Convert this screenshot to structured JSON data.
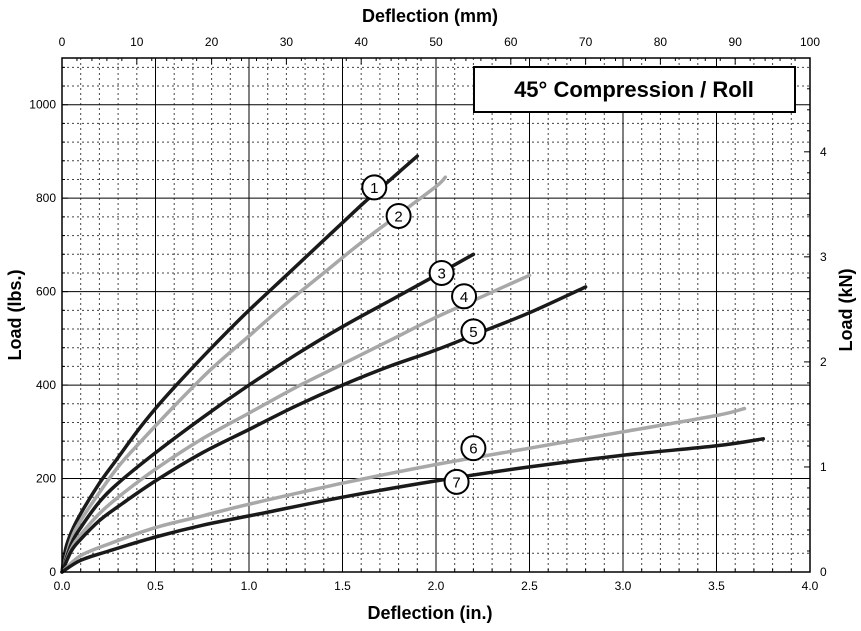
{
  "chart_data": {
    "type": "line",
    "title": "45° Compression / Roll",
    "xlabel": "Deflection (in.)",
    "x2label": "Deflection (mm)",
    "ylabel": "Load (lbs.)",
    "y2label": "Load (kN)",
    "xlim": [
      0,
      4.0
    ],
    "ylim": [
      0,
      1100
    ],
    "x2lim": [
      0,
      100
    ],
    "y2lim": [
      0,
      4.893
    ],
    "x_ticks": [
      "0.0",
      "0.5",
      "1.0",
      "1.5",
      "2.0",
      "2.5",
      "3.0",
      "3.5",
      "4.0"
    ],
    "y_ticks": [
      "0",
      "200",
      "400",
      "600",
      "800",
      "1000"
    ],
    "x2_ticks": [
      "0",
      "10",
      "20",
      "30",
      "40",
      "50",
      "60",
      "70",
      "80",
      "90",
      "100"
    ],
    "y2_ticks": [
      "0",
      "1",
      "2",
      "3",
      "4"
    ],
    "grid": true,
    "colors": {
      "dark": "#1a1a1a",
      "light": "#a8a8a8",
      "grid_major": "#000000",
      "grid_minor": "#444444"
    },
    "series": [
      {
        "name": "1",
        "color": "dark",
        "x": [
          0,
          0.02,
          0.05,
          0.1,
          0.2,
          0.3,
          0.4,
          0.5,
          0.6,
          0.8,
          1.0,
          1.2,
          1.4,
          1.6,
          1.7,
          1.8,
          1.9
        ],
        "y": [
          0,
          50,
          85,
          125,
          190,
          245,
          300,
          350,
          395,
          480,
          560,
          635,
          710,
          785,
          820,
          855,
          890
        ]
      },
      {
        "name": "2",
        "color": "light",
        "x": [
          0,
          0.05,
          0.1,
          0.2,
          0.3,
          0.4,
          0.6,
          0.8,
          1.0,
          1.2,
          1.4,
          1.6,
          1.8,
          2.0,
          2.05
        ],
        "y": [
          0,
          70,
          110,
          170,
          225,
          270,
          355,
          435,
          505,
          575,
          640,
          705,
          765,
          825,
          845
        ]
      },
      {
        "name": "3",
        "color": "dark",
        "x": [
          0,
          0.05,
          0.1,
          0.2,
          0.3,
          0.5,
          0.75,
          1.0,
          1.25,
          1.5,
          1.75,
          2.0,
          2.2
        ],
        "y": [
          0,
          60,
          95,
          150,
          190,
          255,
          330,
          400,
          465,
          525,
          580,
          635,
          680
        ]
      },
      {
        "name": "4",
        "color": "light",
        "x": [
          0,
          0.05,
          0.1,
          0.2,
          0.3,
          0.5,
          0.75,
          1.0,
          1.25,
          1.5,
          1.75,
          2.0,
          2.25,
          2.5
        ],
        "y": [
          0,
          50,
          80,
          125,
          160,
          220,
          285,
          340,
          395,
          445,
          495,
          545,
          590,
          635
        ]
      },
      {
        "name": "5",
        "color": "dark",
        "x": [
          0,
          0.05,
          0.1,
          0.2,
          0.3,
          0.5,
          0.75,
          1.0,
          1.25,
          1.5,
          1.75,
          2.0,
          2.25,
          2.5,
          2.8
        ],
        "y": [
          0,
          45,
          70,
          110,
          140,
          195,
          255,
          305,
          355,
          400,
          440,
          475,
          515,
          555,
          610
        ]
      },
      {
        "name": "6",
        "color": "light",
        "x": [
          0,
          0.1,
          0.25,
          0.5,
          0.75,
          1.0,
          1.5,
          2.0,
          2.5,
          3.0,
          3.5,
          3.65
        ],
        "y": [
          0,
          35,
          60,
          95,
          120,
          145,
          190,
          230,
          265,
          300,
          335,
          350
        ]
      },
      {
        "name": "7",
        "color": "dark",
        "x": [
          0,
          0.1,
          0.25,
          0.5,
          0.75,
          1.0,
          1.5,
          2.0,
          2.5,
          3.0,
          3.5,
          3.75
        ],
        "y": [
          0,
          25,
          45,
          75,
          100,
          120,
          160,
          195,
          225,
          250,
          270,
          285
        ]
      }
    ],
    "labels": [
      {
        "name": "1",
        "x": 1.67,
        "y": 823
      },
      {
        "name": "2",
        "x": 1.8,
        "y": 762
      },
      {
        "name": "3",
        "x": 2.03,
        "y": 640
      },
      {
        "name": "4",
        "x": 2.15,
        "y": 590
      },
      {
        "name": "5",
        "x": 2.2,
        "y": 515
      },
      {
        "name": "6",
        "x": 2.2,
        "y": 265
      },
      {
        "name": "7",
        "x": 2.11,
        "y": 193
      }
    ]
  }
}
